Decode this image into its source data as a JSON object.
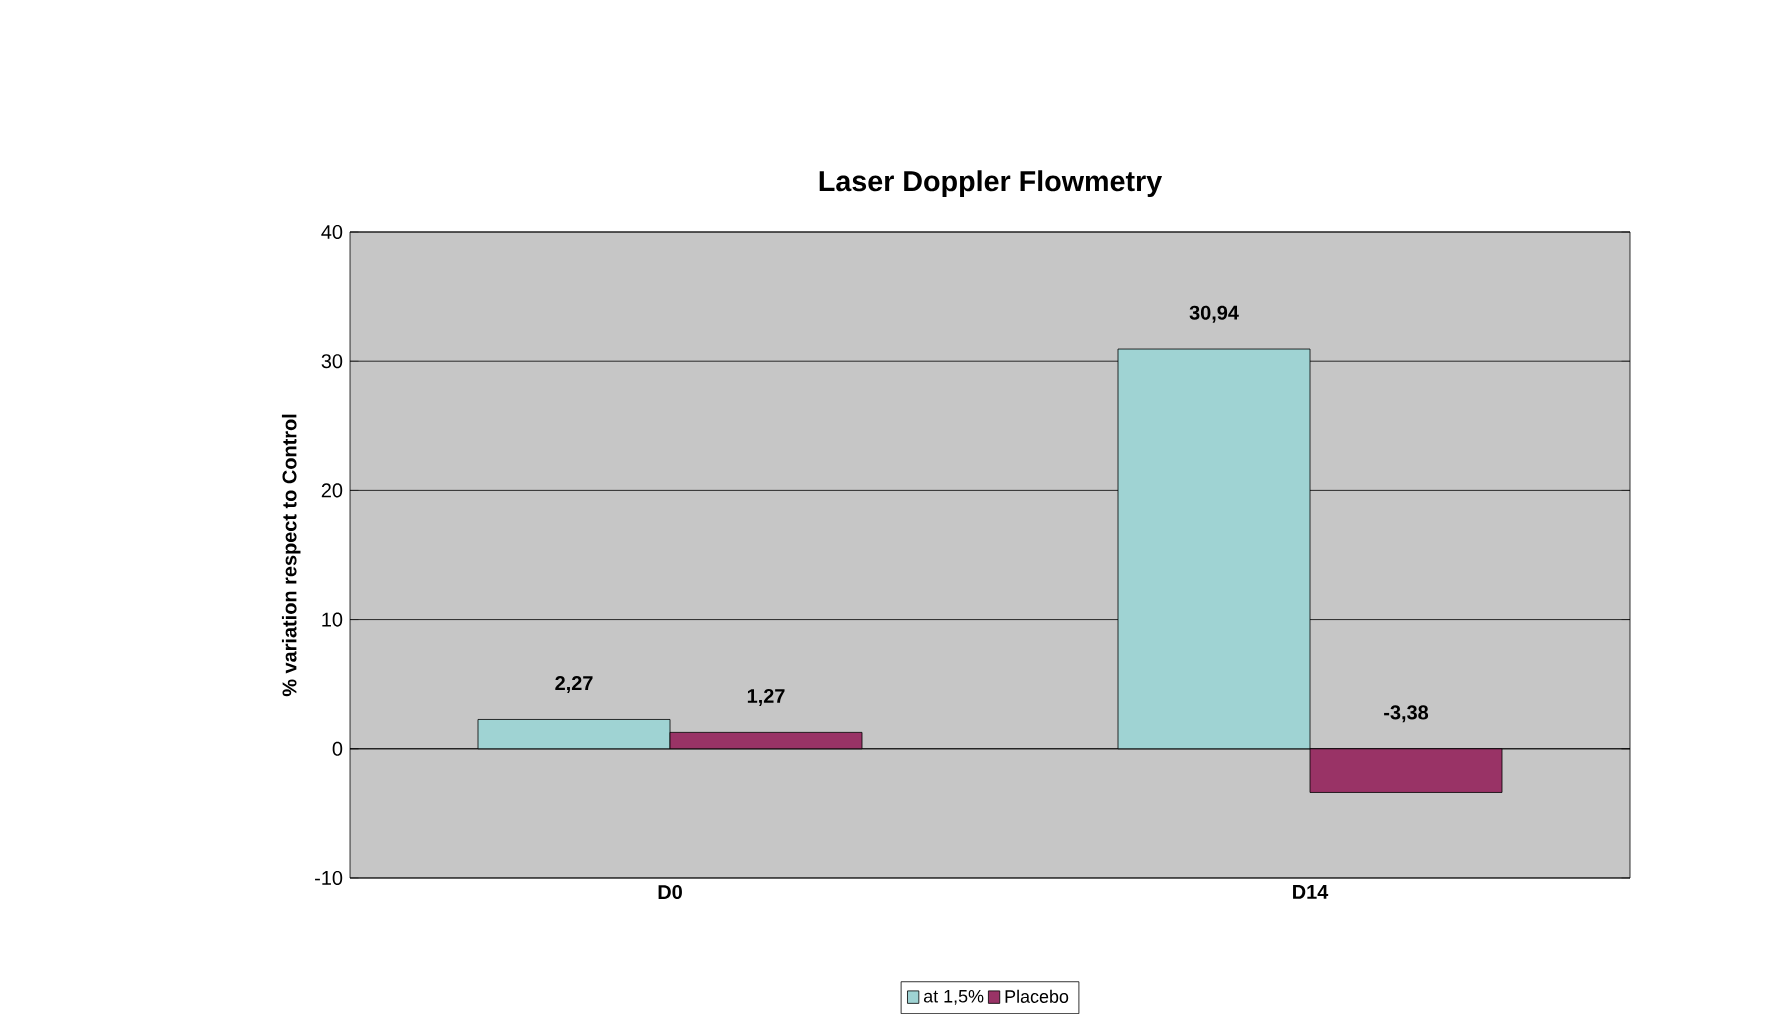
{
  "chart_data": {
    "type": "bar",
    "title": "Laser Doppler Flowmetry",
    "ylabel": "% variation respect to Control",
    "categories": [
      "D0",
      "D14"
    ],
    "series": [
      {
        "name": "at 1,5%",
        "color": "#9fd3d3",
        "values": [
          2.27,
          30.94
        ],
        "value_labels": [
          "2,27",
          "30,94"
        ]
      },
      {
        "name": "Placebo",
        "color": "#993366",
        "values": [
          1.27,
          -3.38
        ],
        "value_labels": [
          "1,27",
          "-3,38"
        ]
      }
    ],
    "ylim": [
      -10,
      40
    ],
    "yticks": [
      -10,
      0,
      10,
      20,
      30,
      40
    ],
    "grid": "y",
    "legend": "bottom"
  }
}
